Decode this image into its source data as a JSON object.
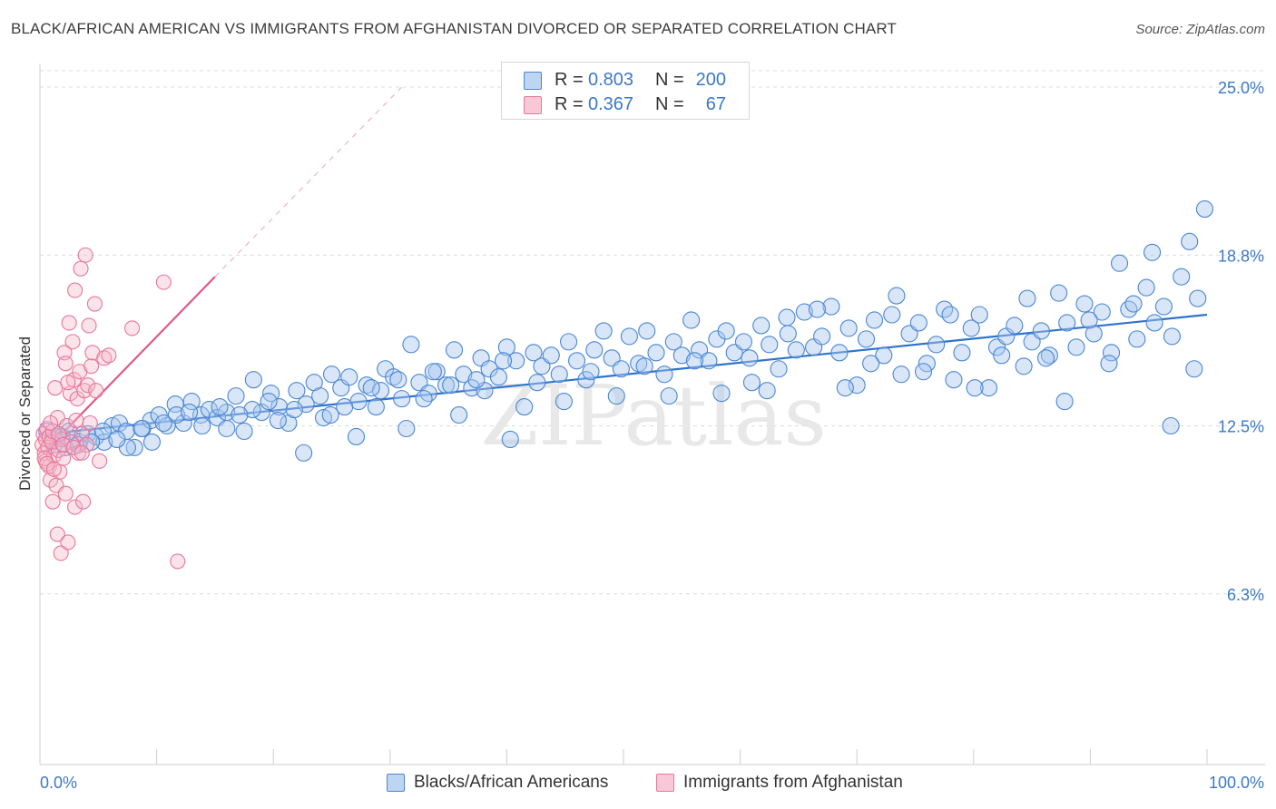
{
  "title": "BLACK/AFRICAN AMERICAN VS IMMIGRANTS FROM AFGHANISTAN DIVORCED OR SEPARATED CORRELATION CHART",
  "source": "Source: ZipAtlas.com",
  "watermark": "ZIPatlas",
  "colors": {
    "blue": "#4a86d4",
    "blue_fill": "#a9c8ef",
    "pink": "#e8769b",
    "pink_fill": "#f5b8cb",
    "tick": "#3a78c8",
    "grid": "#dcdcdc"
  },
  "legend_top": [
    {
      "r_label": "R =",
      "r_value": "0.803",
      "n_label": "N =",
      "n_value": "200"
    },
    {
      "r_label": "R =",
      "r_value": "0.367",
      "n_label": "N =",
      "n_value": "67"
    }
  ],
  "legend_bottom": [
    "Blacks/African Americans",
    "Immigrants from Afghanistan"
  ],
  "chart_data": {
    "type": "scatter",
    "title": "BLACK/AFRICAN AMERICAN VS IMMIGRANTS FROM AFGHANISTAN DIVORCED OR SEPARATED CORRELATION CHART",
    "ylabel": "Divorced or Separated",
    "xlim": [
      0,
      100
    ],
    "ylim": [
      0,
      25
    ],
    "x_tick_labels": [
      "0.0%",
      "100.0%"
    ],
    "y_ticks": [
      6.3,
      12.5,
      18.8,
      25.0
    ],
    "y_tick_labels": [
      "6.3%",
      "12.5%",
      "18.8%",
      "25.0%"
    ],
    "grid": "horizontal dashed",
    "series": [
      {
        "name": "Blacks/African Americans",
        "color": "#4a86d4",
        "r": 0.803,
        "n": 200,
        "trend": [
          [
            0.5,
            12.2
          ],
          [
            100,
            16.6
          ]
        ],
        "points": [
          [
            0.6,
            12.3
          ],
          [
            1.1,
            12.0
          ],
          [
            1.6,
            12.1
          ],
          [
            2.2,
            11.7
          ],
          [
            2.8,
            12.0
          ],
          [
            3.4,
            11.9
          ],
          [
            4.1,
            12.2
          ],
          [
            4.8,
            12.1
          ],
          [
            5.5,
            11.9
          ],
          [
            6.2,
            12.5
          ],
          [
            6.8,
            12.6
          ],
          [
            7.4,
            12.3
          ],
          [
            8.1,
            11.7
          ],
          [
            8.8,
            12.4
          ],
          [
            9.5,
            12.7
          ],
          [
            10.2,
            12.9
          ],
          [
            10.9,
            12.5
          ],
          [
            11.6,
            13.3
          ],
          [
            12.3,
            12.6
          ],
          [
            13.0,
            13.4
          ],
          [
            13.8,
            12.9
          ],
          [
            14.5,
            13.1
          ],
          [
            15.2,
            12.8
          ],
          [
            16.0,
            13.0
          ],
          [
            16.8,
            13.6
          ],
          [
            17.5,
            12.3
          ],
          [
            18.3,
            14.2
          ],
          [
            19.0,
            13.0
          ],
          [
            19.8,
            13.7
          ],
          [
            20.5,
            13.2
          ],
          [
            21.3,
            12.6
          ],
          [
            22.0,
            13.8
          ],
          [
            22.8,
            13.3
          ],
          [
            23.5,
            14.1
          ],
          [
            24.3,
            12.8
          ],
          [
            25.0,
            14.4
          ],
          [
            25.8,
            13.9
          ],
          [
            26.5,
            14.3
          ],
          [
            27.3,
            13.4
          ],
          [
            28.0,
            14.0
          ],
          [
            28.8,
            13.2
          ],
          [
            29.6,
            14.6
          ],
          [
            30.3,
            14.3
          ],
          [
            31.0,
            13.5
          ],
          [
            31.8,
            15.5
          ],
          [
            32.5,
            14.1
          ],
          [
            33.3,
            13.7
          ],
          [
            34.0,
            14.5
          ],
          [
            34.8,
            14.0
          ],
          [
            35.5,
            15.3
          ],
          [
            36.3,
            14.4
          ],
          [
            37.0,
            13.9
          ],
          [
            37.8,
            15.0
          ],
          [
            38.5,
            14.6
          ],
          [
            39.3,
            14.3
          ],
          [
            40.0,
            15.4
          ],
          [
            40.8,
            14.9
          ],
          [
            41.5,
            13.2
          ],
          [
            42.3,
            15.2
          ],
          [
            43.0,
            14.7
          ],
          [
            43.8,
            15.1
          ],
          [
            44.5,
            14.4
          ],
          [
            45.3,
            15.6
          ],
          [
            46.0,
            14.9
          ],
          [
            46.8,
            14.2
          ],
          [
            47.5,
            15.3
          ],
          [
            48.3,
            16.0
          ],
          [
            49.0,
            15.0
          ],
          [
            49.8,
            14.6
          ],
          [
            50.5,
            15.8
          ],
          [
            51.3,
            14.8
          ],
          [
            52.0,
            16.0
          ],
          [
            52.8,
            15.2
          ],
          [
            53.5,
            14.4
          ],
          [
            54.3,
            15.6
          ],
          [
            55.0,
            15.1
          ],
          [
            55.8,
            16.4
          ],
          [
            56.5,
            15.3
          ],
          [
            57.3,
            14.9
          ],
          [
            58.0,
            15.7
          ],
          [
            58.8,
            16.0
          ],
          [
            59.5,
            15.2
          ],
          [
            60.3,
            15.6
          ],
          [
            61.0,
            14.1
          ],
          [
            61.8,
            16.2
          ],
          [
            62.5,
            15.5
          ],
          [
            63.3,
            14.6
          ],
          [
            64.0,
            16.5
          ],
          [
            64.8,
            15.3
          ],
          [
            65.5,
            16.7
          ],
          [
            66.3,
            15.4
          ],
          [
            67.0,
            15.8
          ],
          [
            67.8,
            16.9
          ],
          [
            68.5,
            15.2
          ],
          [
            69.3,
            16.1
          ],
          [
            70.0,
            14.0
          ],
          [
            70.8,
            15.7
          ],
          [
            71.5,
            16.4
          ],
          [
            72.3,
            15.1
          ],
          [
            73.0,
            16.6
          ],
          [
            73.8,
            14.4
          ],
          [
            74.5,
            15.9
          ],
          [
            75.3,
            16.3
          ],
          [
            76.0,
            14.8
          ],
          [
            76.8,
            15.5
          ],
          [
            77.5,
            16.8
          ],
          [
            78.3,
            14.2
          ],
          [
            79.0,
            15.2
          ],
          [
            79.8,
            16.1
          ],
          [
            80.5,
            16.6
          ],
          [
            81.3,
            13.9
          ],
          [
            82.0,
            15.4
          ],
          [
            82.8,
            15.8
          ],
          [
            83.5,
            16.2
          ],
          [
            84.3,
            14.7
          ],
          [
            85.0,
            15.6
          ],
          [
            85.8,
            16.0
          ],
          [
            86.5,
            15.1
          ],
          [
            87.3,
            17.4
          ],
          [
            88.0,
            16.3
          ],
          [
            88.8,
            15.4
          ],
          [
            89.5,
            17.0
          ],
          [
            90.3,
            15.9
          ],
          [
            91.0,
            16.7
          ],
          [
            91.8,
            15.2
          ],
          [
            92.5,
            18.5
          ],
          [
            93.3,
            16.8
          ],
          [
            94.0,
            15.7
          ],
          [
            94.8,
            17.6
          ],
          [
            95.5,
            16.3
          ],
          [
            96.3,
            16.9
          ],
          [
            97.0,
            15.8
          ],
          [
            97.8,
            18.0
          ],
          [
            98.5,
            19.3
          ],
          [
            99.2,
            17.2
          ],
          [
            99.8,
            20.5
          ],
          [
            98.9,
            14.6
          ],
          [
            96.9,
            12.5
          ],
          [
            95.3,
            18.9
          ],
          [
            93.7,
            17.0
          ],
          [
            91.6,
            14.8
          ],
          [
            89.9,
            16.4
          ],
          [
            87.8,
            13.4
          ],
          [
            86.2,
            15.0
          ],
          [
            84.6,
            17.2
          ],
          [
            82.4,
            15.1
          ],
          [
            80.1,
            13.9
          ],
          [
            78.0,
            16.6
          ],
          [
            75.7,
            14.5
          ],
          [
            73.4,
            17.3
          ],
          [
            71.2,
            14.8
          ],
          [
            69.0,
            13.9
          ],
          [
            66.6,
            16.8
          ],
          [
            64.1,
            15.9
          ],
          [
            62.3,
            13.8
          ],
          [
            60.8,
            15.0
          ],
          [
            58.4,
            13.7
          ],
          [
            56.1,
            14.9
          ],
          [
            53.9,
            13.6
          ],
          [
            51.8,
            14.7
          ],
          [
            49.4,
            13.6
          ],
          [
            47.2,
            14.5
          ],
          [
            44.9,
            13.4
          ],
          [
            42.6,
            14.1
          ],
          [
            40.3,
            12.0
          ],
          [
            38.1,
            13.8
          ],
          [
            35.9,
            12.9
          ],
          [
            33.7,
            14.5
          ],
          [
            31.4,
            12.4
          ],
          [
            29.2,
            13.8
          ],
          [
            27.1,
            12.1
          ],
          [
            24.9,
            12.9
          ],
          [
            22.6,
            11.5
          ],
          [
            20.4,
            12.7
          ],
          [
            18.2,
            13.1
          ],
          [
            16.0,
            12.4
          ],
          [
            13.9,
            12.5
          ],
          [
            11.7,
            12.9
          ],
          [
            9.6,
            11.9
          ],
          [
            7.5,
            11.7
          ],
          [
            5.4,
            12.3
          ],
          [
            3.3,
            11.8
          ],
          [
            1.9,
            12.1
          ],
          [
            1.2,
            11.8
          ],
          [
            2.5,
            12.3
          ],
          [
            4.4,
            11.9
          ],
          [
            6.6,
            12.0
          ],
          [
            8.7,
            12.4
          ],
          [
            10.6,
            12.6
          ],
          [
            12.8,
            13.0
          ],
          [
            15.4,
            13.2
          ],
          [
            17.1,
            12.9
          ],
          [
            19.6,
            13.4
          ],
          [
            21.8,
            13.1
          ],
          [
            24.0,
            13.6
          ],
          [
            26.1,
            13.2
          ],
          [
            28.4,
            13.9
          ],
          [
            30.7,
            14.2
          ],
          [
            32.9,
            13.5
          ],
          [
            35.2,
            14.0
          ],
          [
            37.4,
            14.2
          ],
          [
            39.7,
            14.9
          ]
        ]
      },
      {
        "name": "Immigrants from Afghanistan",
        "color": "#e8769b",
        "r": 0.367,
        "n": 67,
        "trend": [
          [
            0.3,
            11.5
          ],
          [
            15,
            18.0
          ]
        ],
        "trend_extension": [
          [
            15,
            18.0
          ],
          [
            31,
            25.0
          ]
        ],
        "points": [
          [
            0.2,
            11.8
          ],
          [
            0.3,
            12.2
          ],
          [
            0.4,
            11.5
          ],
          [
            0.5,
            12.0
          ],
          [
            0.5,
            11.2
          ],
          [
            0.6,
            12.4
          ],
          [
            0.7,
            11.7
          ],
          [
            0.8,
            11.0
          ],
          [
            0.8,
            12.1
          ],
          [
            0.9,
            10.5
          ],
          [
            1.0,
            11.9
          ],
          [
            1.1,
            9.7
          ],
          [
            1.1,
            12.3
          ],
          [
            1.2,
            11.4
          ],
          [
            1.3,
            13.9
          ],
          [
            1.4,
            10.3
          ],
          [
            1.5,
            12.8
          ],
          [
            1.5,
            8.5
          ],
          [
            1.6,
            11.6
          ],
          [
            1.7,
            10.8
          ],
          [
            1.8,
            7.8
          ],
          [
            1.9,
            12.0
          ],
          [
            2.0,
            11.3
          ],
          [
            2.1,
            15.2
          ],
          [
            2.2,
            10.0
          ],
          [
            2.2,
            14.8
          ],
          [
            2.3,
            12.5
          ],
          [
            2.4,
            8.2
          ],
          [
            2.5,
            16.3
          ],
          [
            2.6,
            13.7
          ],
          [
            2.7,
            11.9
          ],
          [
            2.8,
            15.6
          ],
          [
            2.9,
            14.2
          ],
          [
            3.0,
            9.5
          ],
          [
            3.0,
            17.5
          ],
          [
            3.1,
            12.7
          ],
          [
            3.2,
            13.5
          ],
          [
            3.3,
            11.5
          ],
          [
            3.4,
            14.5
          ],
          [
            3.5,
            18.3
          ],
          [
            3.6,
            12.2
          ],
          [
            3.7,
            9.7
          ],
          [
            3.8,
            13.8
          ],
          [
            3.9,
            18.8
          ],
          [
            4.0,
            11.8
          ],
          [
            4.1,
            14.0
          ],
          [
            4.2,
            16.2
          ],
          [
            4.3,
            12.6
          ],
          [
            4.4,
            14.7
          ],
          [
            4.5,
            15.2
          ],
          [
            4.7,
            17.0
          ],
          [
            4.8,
            13.8
          ],
          [
            5.1,
            11.2
          ],
          [
            5.5,
            15.0
          ],
          [
            5.9,
            15.1
          ],
          [
            7.9,
            16.1
          ],
          [
            10.6,
            17.8
          ],
          [
            11.8,
            7.5
          ],
          [
            0.4,
            11.3
          ],
          [
            0.6,
            11.1
          ],
          [
            0.9,
            12.6
          ],
          [
            1.2,
            10.9
          ],
          [
            1.6,
            12.2
          ],
          [
            2.0,
            11.8
          ],
          [
            2.4,
            14.1
          ],
          [
            2.9,
            11.7
          ],
          [
            3.6,
            11.5
          ]
        ]
      }
    ]
  }
}
